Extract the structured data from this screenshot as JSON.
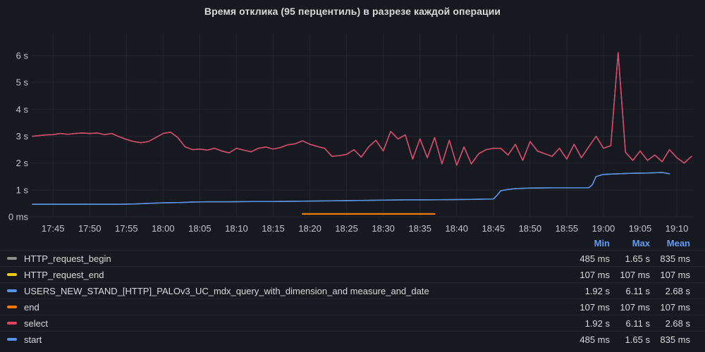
{
  "panel": {
    "title": "Время отклика (95 перцентиль) в разрезе каждой операции"
  },
  "chart_data": {
    "type": "line",
    "title": "Время отклика (95 перцентиль) в разрезе каждой операции",
    "x_axis": {
      "unit": "time of day",
      "tick_labels": [
        "17:45",
        "17:50",
        "17:55",
        "18:00",
        "18:05",
        "18:10",
        "18:15",
        "18:20",
        "18:25",
        "18:30",
        "18:35",
        "18:40",
        "18:45",
        "18:50",
        "18:55",
        "19:00",
        "19:05",
        "19:10"
      ],
      "tick_minutes": [
        0,
        5,
        10,
        15,
        20,
        25,
        30,
        35,
        40,
        45,
        50,
        55,
        60,
        65,
        70,
        75,
        80,
        85
      ],
      "range_minutes": [
        -2.9,
        87.3
      ],
      "grid": true
    },
    "y_axis": {
      "unit": "seconds",
      "tick_labels": [
        "0 ms",
        "1 s",
        "2 s",
        "3 s",
        "4 s",
        "5 s",
        "6 s"
      ],
      "tick_values": [
        0,
        1,
        2,
        3,
        4,
        5,
        6
      ],
      "range_seconds": [
        0,
        6.81
      ],
      "grid": true
    },
    "legend_position": "bottom-table",
    "series": [
      {
        "name": "HTTP_request_begin",
        "color": "#8e8e8e",
        "width": 1.5,
        "points": [
          [
            -2.8,
            0.47
          ],
          [
            0,
            0.47
          ],
          [
            3,
            0.47
          ],
          [
            6,
            0.47
          ],
          [
            9,
            0.47
          ],
          [
            11,
            0.48
          ],
          [
            13,
            0.5
          ],
          [
            15,
            0.52
          ],
          [
            17,
            0.53
          ],
          [
            19,
            0.55
          ],
          [
            21,
            0.56
          ],
          [
            24,
            0.56
          ],
          [
            27,
            0.57
          ],
          [
            30,
            0.57
          ],
          [
            33,
            0.58
          ],
          [
            36,
            0.59
          ],
          [
            39,
            0.6
          ],
          [
            42,
            0.61
          ],
          [
            45,
            0.62
          ],
          [
            48,
            0.63
          ],
          [
            51,
            0.63
          ],
          [
            54,
            0.64
          ],
          [
            57,
            0.65
          ],
          [
            59,
            0.66
          ],
          [
            60,
            0.66
          ],
          [
            60.5,
            0.8
          ],
          [
            61,
            0.97
          ],
          [
            62,
            1.02
          ],
          [
            63,
            1.05
          ],
          [
            65,
            1.07
          ],
          [
            68,
            1.08
          ],
          [
            71,
            1.08
          ],
          [
            73,
            1.08
          ],
          [
            73.5,
            1.2
          ],
          [
            74,
            1.5
          ],
          [
            75,
            1.58
          ],
          [
            77,
            1.6
          ],
          [
            79,
            1.62
          ],
          [
            81,
            1.63
          ],
          [
            83,
            1.65
          ],
          [
            84,
            1.6
          ]
        ]
      },
      {
        "name": "HTTP_request_end",
        "color": "#f2cc0c",
        "width": 2,
        "points": [
          [
            34,
            0.107
          ],
          [
            52,
            0.107
          ]
        ]
      },
      {
        "name": "USERS_NEW_STAND_[HTTP]_PALOv3_UC_mdx_query_with_dimension_and measure_and_date",
        "color": "#5794f2",
        "width": 1.5,
        "points": [
          [
            -2.8,
            3.0
          ],
          [
            -2,
            3.02
          ],
          [
            -1,
            3.05
          ],
          [
            0,
            3.06
          ],
          [
            1,
            3.1
          ],
          [
            2,
            3.07
          ],
          [
            3,
            3.1
          ],
          [
            4,
            3.12
          ],
          [
            5,
            3.1
          ],
          [
            6,
            3.12
          ],
          [
            7,
            3.06
          ],
          [
            8,
            3.1
          ],
          [
            9,
            2.98
          ],
          [
            10,
            2.88
          ],
          [
            11,
            2.8
          ],
          [
            12,
            2.76
          ],
          [
            13,
            2.8
          ],
          [
            14,
            2.95
          ],
          [
            15,
            3.1
          ],
          [
            16,
            3.15
          ],
          [
            17,
            2.95
          ],
          [
            18,
            2.6
          ],
          [
            19,
            2.5
          ],
          [
            20,
            2.52
          ],
          [
            21,
            2.48
          ],
          [
            22,
            2.55
          ],
          [
            23,
            2.45
          ],
          [
            24,
            2.38
          ],
          [
            25,
            2.55
          ],
          [
            26,
            2.48
          ],
          [
            27,
            2.42
          ],
          [
            28,
            2.55
          ],
          [
            29,
            2.6
          ],
          [
            30,
            2.52
          ],
          [
            31,
            2.58
          ],
          [
            32,
            2.68
          ],
          [
            33,
            2.72
          ],
          [
            34,
            2.83
          ],
          [
            35,
            2.7
          ],
          [
            36,
            2.62
          ],
          [
            37,
            2.55
          ],
          [
            38,
            2.25
          ],
          [
            39,
            2.28
          ],
          [
            40,
            2.32
          ],
          [
            41,
            2.5
          ],
          [
            42,
            2.22
          ],
          [
            43,
            2.6
          ],
          [
            44,
            2.85
          ],
          [
            45,
            2.45
          ],
          [
            46,
            3.18
          ],
          [
            47,
            2.9
          ],
          [
            48,
            3.05
          ],
          [
            49,
            2.15
          ],
          [
            50,
            2.9
          ],
          [
            51,
            2.2
          ],
          [
            52,
            2.95
          ],
          [
            53,
            1.97
          ],
          [
            54,
            2.85
          ],
          [
            55,
            1.92
          ],
          [
            56,
            2.6
          ],
          [
            57,
            1.97
          ],
          [
            58,
            2.35
          ],
          [
            59,
            2.5
          ],
          [
            60,
            2.55
          ],
          [
            61,
            2.55
          ],
          [
            62,
            2.3
          ],
          [
            63,
            2.7
          ],
          [
            64,
            2.1
          ],
          [
            65,
            2.8
          ],
          [
            66,
            2.45
          ],
          [
            67,
            2.35
          ],
          [
            68,
            2.25
          ],
          [
            69,
            2.55
          ],
          [
            70,
            2.15
          ],
          [
            71,
            2.7
          ],
          [
            72,
            2.2
          ],
          [
            73,
            2.6
          ],
          [
            74,
            3.0
          ],
          [
            75,
            2.55
          ],
          [
            76,
            2.65
          ],
          [
            77,
            6.11
          ],
          [
            78,
            2.4
          ],
          [
            79,
            2.1
          ],
          [
            80,
            2.45
          ],
          [
            81,
            2.1
          ],
          [
            82,
            2.3
          ],
          [
            83,
            2.05
          ],
          [
            84,
            2.5
          ],
          [
            85,
            2.2
          ],
          [
            86,
            2.0
          ],
          [
            87,
            2.25
          ]
        ]
      },
      {
        "name": "end",
        "color": "#ff780a",
        "width": 2,
        "points": [
          [
            34,
            0.107
          ],
          [
            52,
            0.107
          ]
        ]
      },
      {
        "name": "select",
        "color": "#e0455f",
        "width": 1.5,
        "points": [
          [
            -2.8,
            3.0
          ],
          [
            -2,
            3.02
          ],
          [
            -1,
            3.05
          ],
          [
            0,
            3.06
          ],
          [
            1,
            3.1
          ],
          [
            2,
            3.07
          ],
          [
            3,
            3.1
          ],
          [
            4,
            3.12
          ],
          [
            5,
            3.1
          ],
          [
            6,
            3.12
          ],
          [
            7,
            3.06
          ],
          [
            8,
            3.1
          ],
          [
            9,
            2.98
          ],
          [
            10,
            2.88
          ],
          [
            11,
            2.8
          ],
          [
            12,
            2.76
          ],
          [
            13,
            2.8
          ],
          [
            14,
            2.95
          ],
          [
            15,
            3.1
          ],
          [
            16,
            3.15
          ],
          [
            17,
            2.95
          ],
          [
            18,
            2.6
          ],
          [
            19,
            2.5
          ],
          [
            20,
            2.52
          ],
          [
            21,
            2.48
          ],
          [
            22,
            2.55
          ],
          [
            23,
            2.45
          ],
          [
            24,
            2.38
          ],
          [
            25,
            2.55
          ],
          [
            26,
            2.48
          ],
          [
            27,
            2.42
          ],
          [
            28,
            2.55
          ],
          [
            29,
            2.6
          ],
          [
            30,
            2.52
          ],
          [
            31,
            2.58
          ],
          [
            32,
            2.68
          ],
          [
            33,
            2.72
          ],
          [
            34,
            2.83
          ],
          [
            35,
            2.7
          ],
          [
            36,
            2.62
          ],
          [
            37,
            2.55
          ],
          [
            38,
            2.25
          ],
          [
            39,
            2.28
          ],
          [
            40,
            2.32
          ],
          [
            41,
            2.5
          ],
          [
            42,
            2.22
          ],
          [
            43,
            2.6
          ],
          [
            44,
            2.85
          ],
          [
            45,
            2.45
          ],
          [
            46,
            3.18
          ],
          [
            47,
            2.9
          ],
          [
            48,
            3.05
          ],
          [
            49,
            2.15
          ],
          [
            50,
            2.9
          ],
          [
            51,
            2.2
          ],
          [
            52,
            2.95
          ],
          [
            53,
            1.97
          ],
          [
            54,
            2.85
          ],
          [
            55,
            1.92
          ],
          [
            56,
            2.6
          ],
          [
            57,
            1.97
          ],
          [
            58,
            2.35
          ],
          [
            59,
            2.5
          ],
          [
            60,
            2.55
          ],
          [
            61,
            2.55
          ],
          [
            62,
            2.3
          ],
          [
            63,
            2.7
          ],
          [
            64,
            2.1
          ],
          [
            65,
            2.8
          ],
          [
            66,
            2.45
          ],
          [
            67,
            2.35
          ],
          [
            68,
            2.25
          ],
          [
            69,
            2.55
          ],
          [
            70,
            2.15
          ],
          [
            71,
            2.7
          ],
          [
            72,
            2.2
          ],
          [
            73,
            2.6
          ],
          [
            74,
            3.0
          ],
          [
            75,
            2.55
          ],
          [
            76,
            2.65
          ],
          [
            77,
            6.11
          ],
          [
            78,
            2.4
          ],
          [
            79,
            2.1
          ],
          [
            80,
            2.45
          ],
          [
            81,
            2.1
          ],
          [
            82,
            2.3
          ],
          [
            83,
            2.05
          ],
          [
            84,
            2.5
          ],
          [
            85,
            2.2
          ],
          [
            86,
            2.0
          ],
          [
            87,
            2.25
          ]
        ]
      },
      {
        "name": "start",
        "color": "#5794f2",
        "width": 1.5,
        "points": [
          [
            -2.8,
            0.47
          ],
          [
            0,
            0.47
          ],
          [
            3,
            0.47
          ],
          [
            6,
            0.47
          ],
          [
            9,
            0.47
          ],
          [
            11,
            0.48
          ],
          [
            13,
            0.5
          ],
          [
            15,
            0.52
          ],
          [
            17,
            0.53
          ],
          [
            19,
            0.55
          ],
          [
            21,
            0.56
          ],
          [
            24,
            0.56
          ],
          [
            27,
            0.57
          ],
          [
            30,
            0.57
          ],
          [
            33,
            0.58
          ],
          [
            36,
            0.59
          ],
          [
            39,
            0.6
          ],
          [
            42,
            0.61
          ],
          [
            45,
            0.62
          ],
          [
            48,
            0.63
          ],
          [
            51,
            0.63
          ],
          [
            54,
            0.64
          ],
          [
            57,
            0.65
          ],
          [
            59,
            0.66
          ],
          [
            60,
            0.66
          ],
          [
            60.5,
            0.8
          ],
          [
            61,
            0.97
          ],
          [
            62,
            1.02
          ],
          [
            63,
            1.05
          ],
          [
            65,
            1.07
          ],
          [
            68,
            1.08
          ],
          [
            71,
            1.08
          ],
          [
            73,
            1.08
          ],
          [
            73.5,
            1.2
          ],
          [
            74,
            1.5
          ],
          [
            75,
            1.58
          ],
          [
            77,
            1.6
          ],
          [
            79,
            1.62
          ],
          [
            81,
            1.63
          ],
          [
            83,
            1.65
          ],
          [
            84,
            1.6
          ]
        ]
      }
    ]
  },
  "legend": {
    "columns": [
      "Min",
      "Max",
      "Mean"
    ],
    "rows": [
      {
        "label": "HTTP_request_begin",
        "color": "#8e8e8e",
        "min": "485 ms",
        "max": "1.65 s",
        "mean": "835 ms"
      },
      {
        "label": "HTTP_request_end",
        "color": "#f2cc0c",
        "min": "107 ms",
        "max": "107 ms",
        "mean": "107 ms"
      },
      {
        "label": "USERS_NEW_STAND_[HTTP]_PALOv3_UC_mdx_query_with_dimension_and measure_and_date",
        "color": "#5794f2",
        "min": "1.92 s",
        "max": "6.11 s",
        "mean": "2.68 s"
      },
      {
        "label": "end",
        "color": "#ff780a",
        "min": "107 ms",
        "max": "107 ms",
        "mean": "107 ms"
      },
      {
        "label": "select",
        "color": "#e0455f",
        "min": "1.92 s",
        "max": "6.11 s",
        "mean": "2.68 s"
      },
      {
        "label": "start",
        "color": "#5794f2",
        "min": "485 ms",
        "max": "1.65 s",
        "mean": "835 ms"
      }
    ]
  },
  "style": {
    "background": "#171920",
    "grid_color": "#23262e",
    "axis_text_color": "#c2c4cc",
    "legend_text_color": "#d8d9da",
    "header_color": "#5f9cf5"
  }
}
